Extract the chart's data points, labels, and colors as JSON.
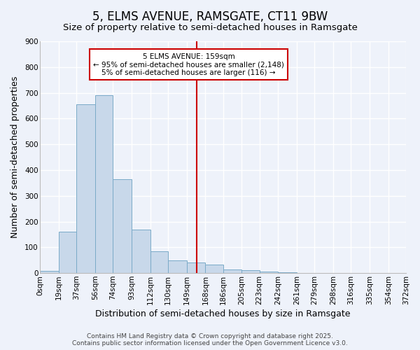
{
  "title": "5, ELMS AVENUE, RAMSGATE, CT11 9BW",
  "subtitle": "Size of property relative to semi-detached houses in Ramsgate",
  "xlabel": "Distribution of semi-detached houses by size in Ramsgate",
  "ylabel": "Number of semi-detached properties",
  "bar_values": [
    8,
    160,
    655,
    690,
    365,
    170,
    85,
    50,
    40,
    32,
    14,
    10,
    5,
    3,
    0,
    0,
    0,
    0,
    0,
    0
  ],
  "bin_edges": [
    0,
    19,
    37,
    56,
    74,
    93,
    112,
    130,
    149,
    168,
    186,
    205,
    223,
    242,
    261,
    279,
    298,
    316,
    335,
    354,
    372
  ],
  "tick_labels": [
    "0sqm",
    "19sqm",
    "37sqm",
    "56sqm",
    "74sqm",
    "93sqm",
    "112sqm",
    "130sqm",
    "149sqm",
    "168sqm",
    "186sqm",
    "205sqm",
    "223sqm",
    "242sqm",
    "261sqm",
    "279sqm",
    "298sqm",
    "316sqm",
    "335sqm",
    "354sqm",
    "372sqm"
  ],
  "bar_color": "#c8d8ea",
  "bar_edge_color": "#7aaac8",
  "vline_x": 159,
  "vline_color": "#cc0000",
  "ylim": [
    0,
    900
  ],
  "yticks": [
    0,
    100,
    200,
    300,
    400,
    500,
    600,
    700,
    800,
    900
  ],
  "annotation_title": "5 ELMS AVENUE: 159sqm",
  "annotation_line1": "← 95% of semi-detached houses are smaller (2,148)",
  "annotation_line2": "5% of semi-detached houses are larger (116) →",
  "annotation_box_color": "#ffffff",
  "annotation_box_edge": "#cc0000",
  "footer_line1": "Contains HM Land Registry data © Crown copyright and database right 2025.",
  "footer_line2": "Contains public sector information licensed under the Open Government Licence v3.0.",
  "background_color": "#eef2fa",
  "grid_color": "#ffffff",
  "title_fontsize": 12,
  "axis_label_fontsize": 9,
  "tick_fontsize": 7.5,
  "footer_fontsize": 6.5
}
